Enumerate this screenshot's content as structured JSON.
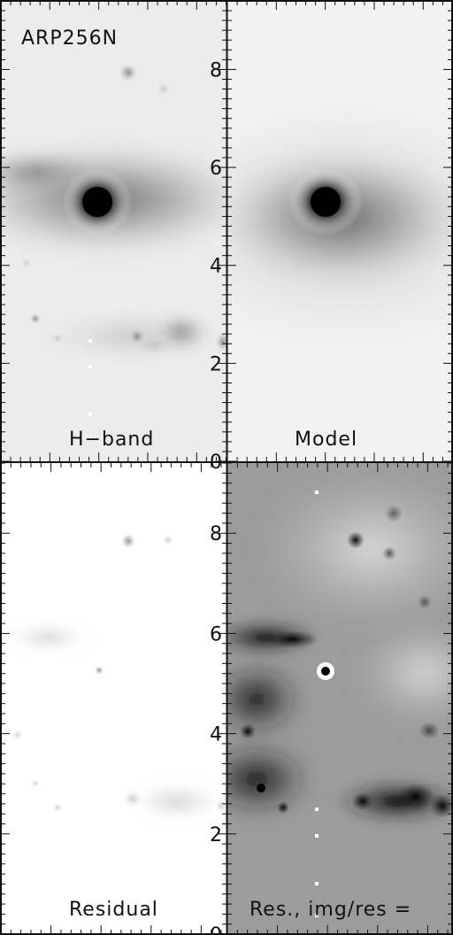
{
  "figure": {
    "object_name": "ARP256N",
    "axis": {
      "ticks": [
        0,
        2,
        4,
        6,
        8
      ],
      "range": [
        0,
        9.4
      ]
    },
    "panels": [
      {
        "id": "hband",
        "label": "H−band"
      },
      {
        "id": "model",
        "label": "Model"
      },
      {
        "id": "residual",
        "label": "Residual"
      },
      {
        "id": "ratio",
        "label": "Res., img/res ="
      }
    ]
  },
  "colors": {
    "frame": "#111111",
    "ink": "#111111",
    "background": "#ffffff"
  }
}
